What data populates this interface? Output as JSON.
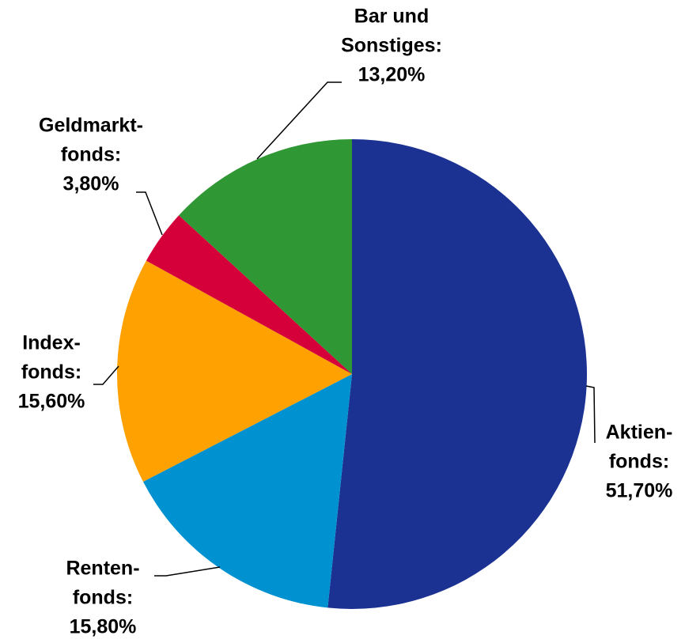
{
  "chart_data": {
    "type": "pie",
    "categories": [
      [
        "Aktien-",
        "fonds:"
      ],
      [
        "Renten-",
        "fonds:"
      ],
      [
        "Index-",
        "fonds:"
      ],
      [
        "Geldmarkt-",
        "fonds:"
      ],
      [
        "Bar und",
        "Sonstiges:"
      ]
    ],
    "values": [
      51.7,
      15.8,
      15.6,
      3.8,
      13.2
    ],
    "value_labels": [
      "51,70%",
      "15,80%",
      "15,60%",
      "3,80%",
      "13,20%"
    ],
    "colors": [
      "#1b3293",
      "#0091d0",
      "#ffa100",
      "#d5003a",
      "#2f9733"
    ]
  }
}
